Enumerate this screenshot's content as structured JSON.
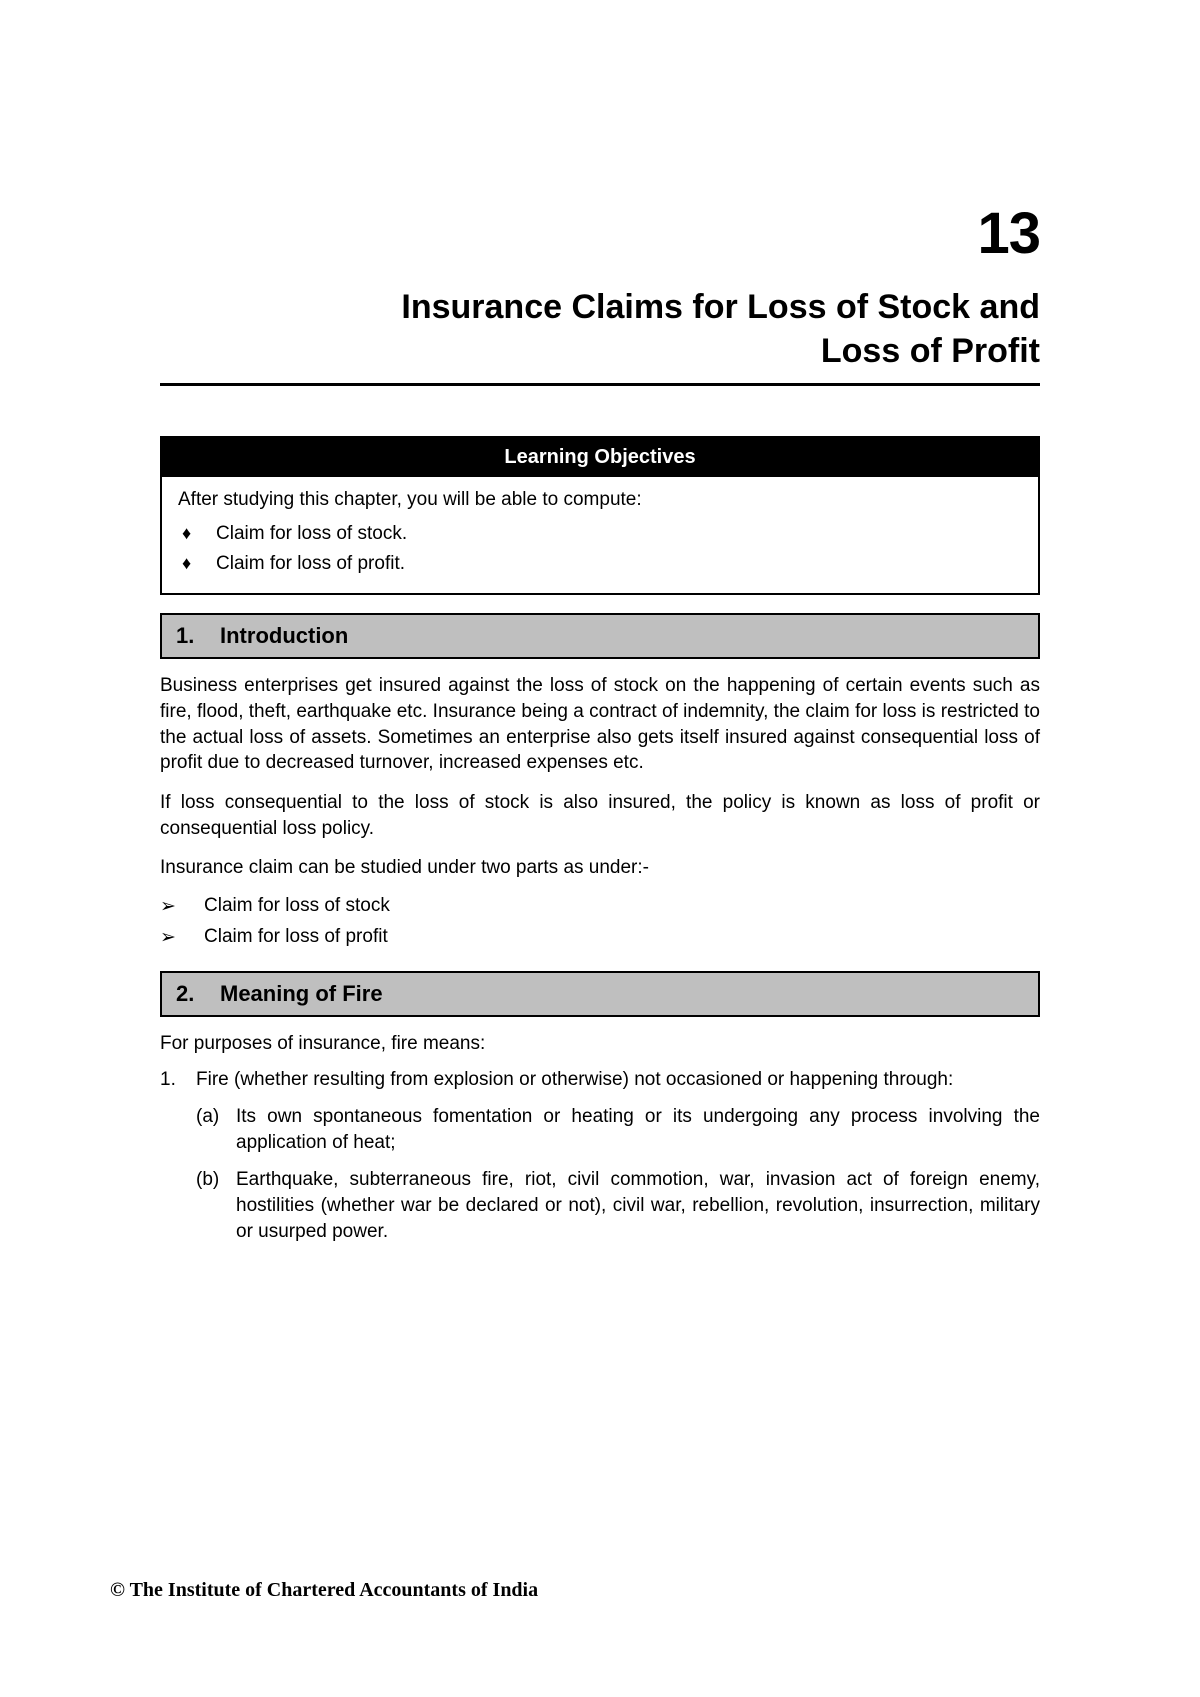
{
  "chapter": {
    "number": "13",
    "title_line1": "Insurance Claims for Loss of Stock and",
    "title_line2": "Loss of Profit"
  },
  "learning": {
    "header": "Learning Objectives",
    "intro": "After studying this chapter, you will be able to compute:",
    "items": [
      "Claim for loss of stock.",
      "Claim for loss of profit."
    ]
  },
  "section1": {
    "num": "1.",
    "title": "Introduction",
    "para1": "Business enterprises get insured against the loss of stock on the happening of certain events such as fire, flood, theft, earthquake etc. Insurance being a contract of indemnity, the claim for loss is restricted to the actual loss of assets.  Sometimes an enterprise also gets itself insured against consequential loss of profit due to decreased turnover, increased expenses etc.",
    "para2": "If loss consequential to the loss of stock is also insured, the policy is known as loss of profit or consequential loss policy.",
    "para3": "Insurance claim can be studied under two parts as under:-",
    "bullets": [
      "Claim for loss of stock",
      "Claim for loss of profit"
    ]
  },
  "section2": {
    "num": "2.",
    "title": "Meaning of Fire",
    "intro": "For purposes of insurance, fire means:",
    "item1": {
      "marker": "1.",
      "text": "Fire (whether resulting from explosion or otherwise) not occasioned or happening through:",
      "sub": [
        {
          "marker": "(a)",
          "text": "Its own spontaneous fomentation or heating or its undergoing any process involving the application of heat;"
        },
        {
          "marker": "(b)",
          "text": "Earthquake, subterraneous fire, riot, civil commotion, war, invasion act of foreign enemy, hostilities (whether war be declared or not), civil war, rebellion, revolution, insurrection, military or usurped power."
        }
      ]
    }
  },
  "footer": "© The Institute of Chartered Accountants of India"
}
